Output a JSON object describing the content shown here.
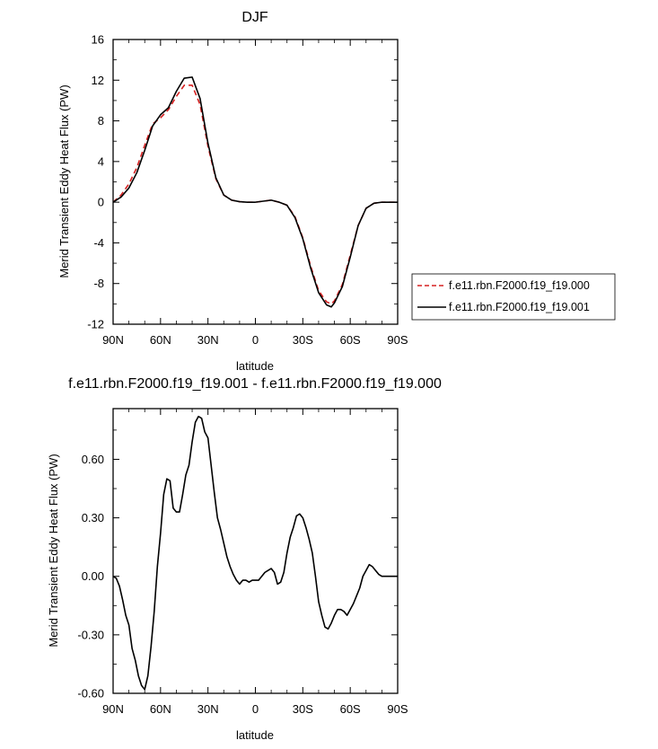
{
  "chart_data": [
    {
      "type": "line",
      "title": "DJF",
      "xlabel": "latitude",
      "ylabel": "Merid Transient Eddy Heat Flux (PW)",
      "x_ticks": [
        "90N",
        "60N",
        "30N",
        "0",
        "30S",
        "60S",
        "90S"
      ],
      "x_tick_values": [
        90,
        60,
        30,
        0,
        -30,
        -60,
        -90
      ],
      "xlim": [
        90,
        -90
      ],
      "y_ticks": [
        "16",
        "12",
        "8",
        "4",
        "0",
        "-4",
        "-8",
        "-12"
      ],
      "y_tick_values": [
        16,
        12,
        8,
        4,
        0,
        -4,
        -8,
        -12
      ],
      "ylim": [
        -12,
        16
      ],
      "legend_position": "right",
      "series": [
        {
          "name": "f.e11.rbn.F2000.f19_f19.000",
          "color": "#d62020",
          "dash": "dashed",
          "x": [
            90,
            85,
            80,
            75,
            70,
            65,
            60,
            55,
            50,
            45,
            40,
            35,
            30,
            25,
            20,
            15,
            10,
            5,
            0,
            -5,
            -10,
            -15,
            -20,
            -25,
            -30,
            -35,
            -40,
            -45,
            -48,
            -50,
            -55,
            -60,
            -65,
            -70,
            -75,
            -80,
            -85,
            -90
          ],
          "y": [
            0.0,
            0.7,
            1.8,
            3.4,
            5.6,
            7.7,
            8.3,
            9.1,
            10.4,
            11.5,
            11.5,
            9.6,
            5.5,
            2.3,
            0.7,
            0.2,
            0.05,
            0.0,
            0.0,
            0.1,
            0.2,
            0.0,
            -0.3,
            -1.4,
            -3.5,
            -6.3,
            -8.7,
            -9.8,
            -10.0,
            -9.7,
            -8.1,
            -5.2,
            -2.3,
            -0.6,
            -0.1,
            0.0,
            0.0,
            0.0
          ]
        },
        {
          "name": "f.e11.rbn.F2000.f19_f19.001",
          "color": "#000000",
          "dash": "solid",
          "x": [
            90,
            85,
            80,
            75,
            70,
            65,
            60,
            55,
            50,
            45,
            40,
            35,
            30,
            25,
            20,
            15,
            10,
            5,
            0,
            -5,
            -10,
            -15,
            -20,
            -25,
            -30,
            -35,
            -40,
            -45,
            -48,
            -50,
            -55,
            -60,
            -65,
            -70,
            -75,
            -80,
            -85,
            -90
          ],
          "y": [
            0.0,
            0.5,
            1.4,
            2.9,
            5.1,
            7.5,
            8.6,
            9.3,
            10.9,
            12.2,
            12.3,
            10.2,
            5.8,
            2.4,
            0.7,
            0.2,
            0.05,
            0.0,
            0.0,
            0.1,
            0.2,
            0.0,
            -0.3,
            -1.5,
            -3.6,
            -6.5,
            -8.9,
            -10.1,
            -10.3,
            -9.9,
            -8.3,
            -5.4,
            -2.3,
            -0.6,
            -0.1,
            0.0,
            0.0,
            0.0
          ]
        }
      ]
    },
    {
      "type": "line",
      "title": "f.e11.rbn.F2000.f19_f19.001 - f.e11.rbn.F2000.f19_f19.000",
      "xlabel": "latitude",
      "ylabel": "Merid Transient Eddy Heat Flux (PW)",
      "x_ticks": [
        "90N",
        "60N",
        "30N",
        "0",
        "30S",
        "60S",
        "90S"
      ],
      "x_tick_values": [
        90,
        60,
        30,
        0,
        -30,
        -60,
        -90
      ],
      "xlim": [
        90,
        -90
      ],
      "y_ticks": [
        "0.60",
        "0.30",
        "0.00",
        "-0.30",
        "-0.60"
      ],
      "y_tick_values": [
        0.6,
        0.3,
        0.0,
        -0.3,
        -0.6
      ],
      "ylim": [
        -0.6,
        0.86
      ],
      "series": [
        {
          "color": "#000000",
          "dash": "solid",
          "x": [
            90,
            88,
            86,
            84,
            82,
            80,
            78,
            76,
            74,
            72,
            70,
            68,
            66,
            64,
            62,
            60,
            58,
            56,
            54,
            52,
            50,
            48,
            46,
            44,
            42,
            40,
            38,
            36,
            34,
            32,
            30,
            28,
            26,
            24,
            22,
            20,
            18,
            16,
            14,
            12,
            10,
            8,
            6,
            4,
            2,
            0,
            -2,
            -4,
            -6,
            -8,
            -10,
            -12,
            -14,
            -16,
            -18,
            -20,
            -22,
            -24,
            -26,
            -28,
            -30,
            -32,
            -34,
            -36,
            -38,
            -40,
            -42,
            -44,
            -46,
            -48,
            -50,
            -52,
            -54,
            -56,
            -58,
            -60,
            -62,
            -64,
            -66,
            -68,
            -70,
            -72,
            -74,
            -76,
            -78,
            -80,
            -82,
            -84,
            -86,
            -88,
            -90
          ],
          "y": [
            0.0,
            -0.01,
            -0.05,
            -0.12,
            -0.2,
            -0.25,
            -0.37,
            -0.43,
            -0.51,
            -0.56,
            -0.58,
            -0.51,
            -0.36,
            -0.18,
            0.05,
            0.22,
            0.42,
            0.5,
            0.49,
            0.35,
            0.33,
            0.33,
            0.42,
            0.52,
            0.57,
            0.69,
            0.79,
            0.82,
            0.81,
            0.74,
            0.71,
            0.57,
            0.43,
            0.3,
            0.24,
            0.17,
            0.1,
            0.05,
            0.01,
            -0.02,
            -0.04,
            -0.02,
            -0.02,
            -0.03,
            -0.02,
            -0.02,
            -0.02,
            0.0,
            0.02,
            0.03,
            0.04,
            0.02,
            -0.04,
            -0.03,
            0.02,
            0.12,
            0.2,
            0.25,
            0.31,
            0.32,
            0.3,
            0.25,
            0.19,
            0.12,
            0.0,
            -0.13,
            -0.2,
            -0.26,
            -0.27,
            -0.24,
            -0.2,
            -0.17,
            -0.17,
            -0.18,
            -0.2,
            -0.17,
            -0.14,
            -0.1,
            -0.06,
            0.0,
            0.03,
            0.06,
            0.05,
            0.03,
            0.01,
            0.0,
            0.0,
            0.0,
            0.0,
            0.0,
            0.0
          ]
        }
      ]
    }
  ]
}
